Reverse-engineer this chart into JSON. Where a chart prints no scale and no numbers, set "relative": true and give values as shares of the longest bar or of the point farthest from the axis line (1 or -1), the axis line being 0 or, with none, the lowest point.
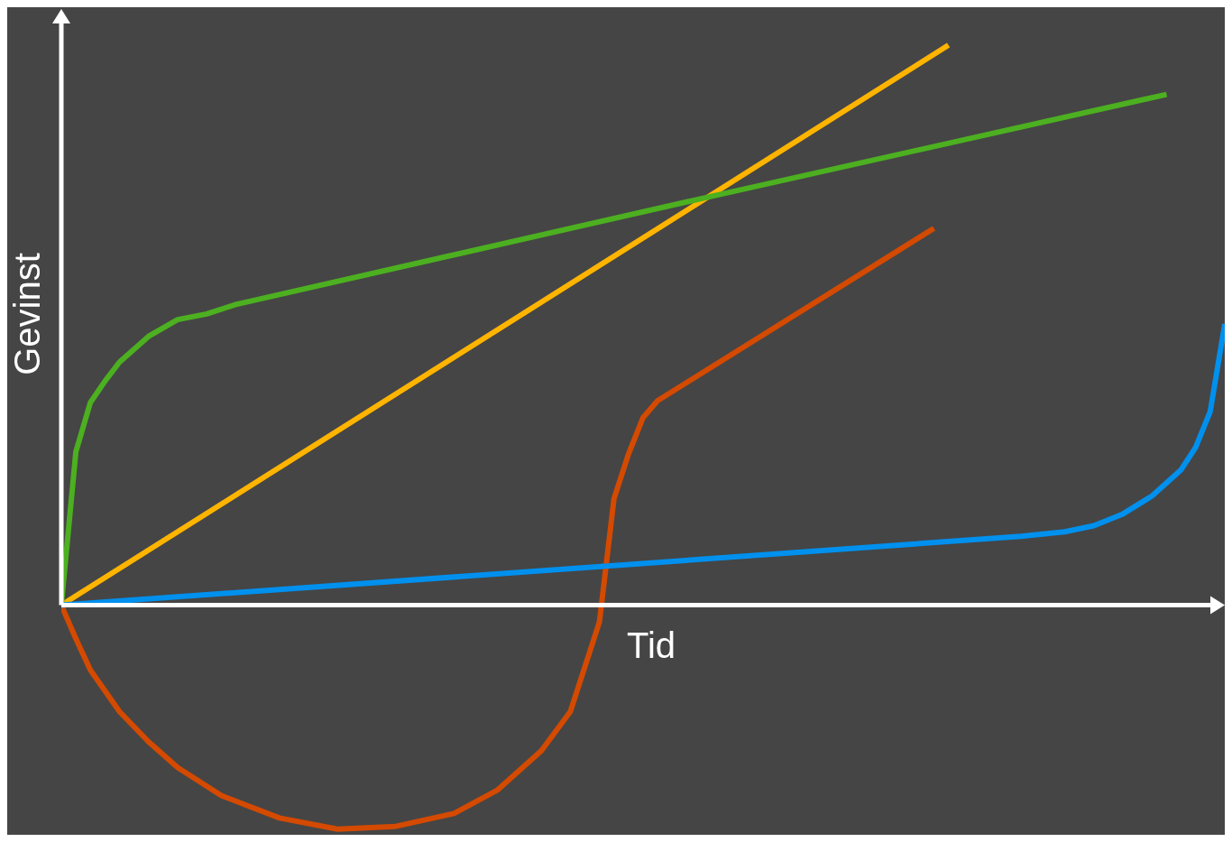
{
  "chart_data": {
    "type": "line",
    "relative": true,
    "xlabel": "Tid",
    "ylabel": "Gevinst",
    "grid": false,
    "marker": "none",
    "line_style": "solid",
    "categories": [
      null,
      null,
      null,
      null,
      null,
      null,
      null,
      null,
      null,
      null,
      null,
      null,
      null,
      null,
      null,
      null,
      null,
      null,
      null,
      null,
      null,
      null,
      null,
      null,
      null,
      null,
      null,
      null,
      null,
      null,
      null,
      null,
      null,
      null,
      null,
      null,
      null,
      null,
      null,
      null,
      null,
      null,
      null,
      null,
      null,
      null,
      null,
      null,
      null,
      null,
      null,
      null,
      null,
      null,
      null,
      null,
      null,
      null,
      null,
      null,
      null,
      null,
      null,
      null,
      null,
      null,
      null,
      null,
      null,
      null,
      null,
      null,
      null,
      null,
      null,
      null,
      null,
      null,
      null,
      null,
      null
    ],
    "series": [
      {
        "color": "#ffb400",
        "values": [
          0,
          null,
          null,
          null,
          null,
          null,
          null,
          null,
          null,
          null,
          null,
          null,
          null,
          null,
          null,
          null,
          null,
          null,
          null,
          null,
          null,
          null,
          null,
          null,
          null,
          null,
          null,
          null,
          null,
          null,
          null,
          null,
          null,
          null,
          null,
          null,
          null,
          null,
          null,
          null,
          null,
          null,
          null,
          null,
          null,
          null,
          null,
          null,
          null,
          null,
          null,
          null,
          null,
          null,
          null,
          null,
          null,
          null,
          null,
          null,
          null,
          1.0,
          null,
          null,
          null,
          null,
          null,
          null,
          null,
          null,
          null,
          null,
          null,
          null,
          null,
          null,
          null,
          null,
          null,
          null,
          null
        ]
      },
      {
        "color": "#4cb020",
        "values": [
          0,
          0.274,
          0.362,
          0.4,
          0.434,
          null,
          0.48,
          null,
          0.51,
          null,
          0.52,
          null,
          0.537,
          null,
          null,
          null,
          null,
          null,
          null,
          null,
          null,
          null,
          null,
          null,
          null,
          null,
          null,
          null,
          null,
          null,
          null,
          null,
          null,
          null,
          null,
          null,
          null,
          null,
          null,
          null,
          null,
          null,
          null,
          null,
          0.726,
          null,
          null,
          null,
          null,
          null,
          null,
          null,
          null,
          null,
          null,
          null,
          null,
          null,
          null,
          null,
          null,
          null,
          null,
          null,
          null,
          null,
          null,
          null,
          null,
          null,
          null,
          null,
          null,
          null,
          null,
          null,
          0.912,
          null,
          null,
          null,
          null
        ]
      },
      {
        "color": "#d44a00",
        "values": [
          0,
          -0.06,
          -0.116,
          null,
          -0.19,
          null,
          -0.244,
          null,
          -0.29,
          null,
          null,
          -0.34,
          null,
          null,
          null,
          -0.38,
          null,
          null,
          null,
          -0.4,
          null,
          null,
          null,
          -0.395,
          null,
          null,
          null,
          -0.372,
          null,
          null,
          -0.33,
          null,
          null,
          -0.26,
          null,
          -0.19,
          null,
          -0.03,
          0.19,
          0.27,
          0.335,
          0.365,
          null,
          null,
          null,
          null,
          null,
          null,
          null,
          null,
          null,
          null,
          null,
          null,
          null,
          null,
          null,
          null,
          null,
          null,
          0.673,
          null,
          null,
          null,
          null,
          null,
          null,
          null,
          null,
          null,
          null,
          null,
          null,
          null,
          null,
          null,
          null,
          null,
          null,
          null,
          null
        ]
      },
      {
        "color": "#0090ee",
        "values": [
          0,
          null,
          null,
          null,
          null,
          null,
          null,
          null,
          null,
          null,
          null,
          null,
          null,
          null,
          null,
          null,
          null,
          null,
          null,
          null,
          null,
          null,
          null,
          null,
          null,
          null,
          null,
          null,
          null,
          null,
          null,
          null,
          null,
          null,
          null,
          null,
          null,
          null,
          null,
          null,
          null,
          null,
          null,
          null,
          null,
          null,
          null,
          null,
          null,
          null,
          null,
          null,
          null,
          null,
          null,
          null,
          null,
          null,
          null,
          null,
          null,
          null,
          null,
          null,
          null,
          null,
          0.123,
          null,
          null,
          0.131,
          null,
          0.142,
          null,
          0.163,
          null,
          0.195,
          null,
          0.242,
          0.282,
          0.346,
          0.502
        ]
      }
    ]
  }
}
